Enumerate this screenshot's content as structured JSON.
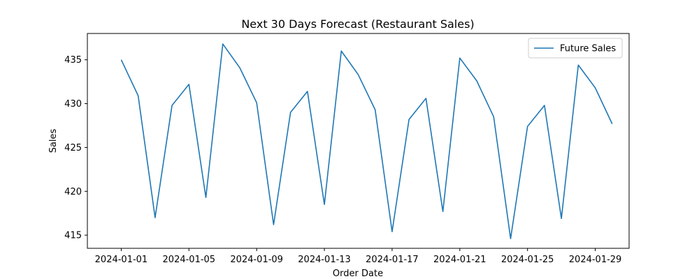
{
  "chart_data": {
    "type": "line",
    "title": "Next 30 Days Forecast (Restaurant Sales)",
    "xlabel": "Order Date",
    "ylabel": "Sales",
    "x": [
      "2024-01-01",
      "2024-01-02",
      "2024-01-03",
      "2024-01-04",
      "2024-01-05",
      "2024-01-06",
      "2024-01-07",
      "2024-01-08",
      "2024-01-09",
      "2024-01-10",
      "2024-01-11",
      "2024-01-12",
      "2024-01-13",
      "2024-01-14",
      "2024-01-15",
      "2024-01-16",
      "2024-01-17",
      "2024-01-18",
      "2024-01-19",
      "2024-01-20",
      "2024-01-21",
      "2024-01-22",
      "2024-01-23",
      "2024-01-24",
      "2024-01-25",
      "2024-01-26",
      "2024-01-27",
      "2024-01-28",
      "2024-01-29",
      "2024-01-30"
    ],
    "xticks": [
      "2024-01-01",
      "2024-01-05",
      "2024-01-09",
      "2024-01-13",
      "2024-01-17",
      "2024-01-21",
      "2024-01-25",
      "2024-01-29"
    ],
    "xlim": [
      "2023-12-30",
      "2024-01-31"
    ],
    "yticks": [
      415,
      420,
      425,
      430,
      435
    ],
    "ylim": [
      413.5,
      438
    ],
    "series": [
      {
        "name": "Future Sales",
        "color": "#1f77b4",
        "values": [
          435.0,
          430.9,
          417.0,
          429.8,
          432.2,
          419.3,
          436.8,
          434.1,
          430.1,
          416.2,
          429.0,
          431.4,
          418.5,
          436.0,
          433.3,
          429.3,
          415.4,
          428.2,
          430.6,
          417.7,
          435.2,
          432.6,
          428.5,
          414.6,
          427.4,
          429.8,
          416.9,
          434.4,
          431.8,
          427.7
        ]
      }
    ],
    "legend_position": "top-right",
    "grid": false
  }
}
